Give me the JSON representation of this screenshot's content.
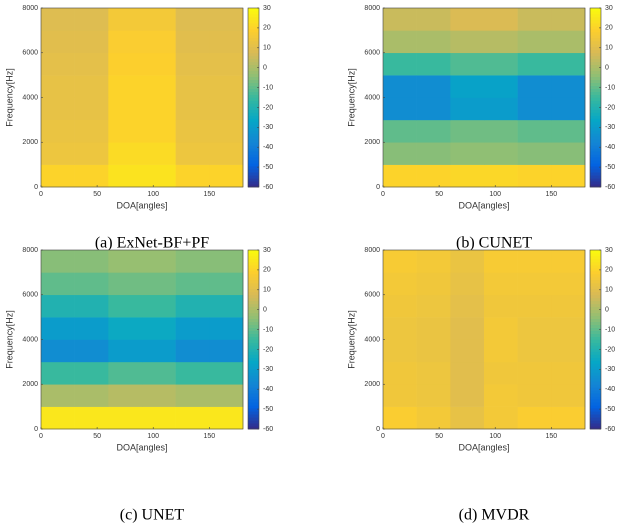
{
  "chart_data": [
    {
      "type": "heatmap",
      "title": "(a) ExNet-BF+PF",
      "xlabel": "DOA[angles]",
      "ylabel": "Frequency[Hz]",
      "x_bins": [
        0,
        30,
        60,
        90,
        120,
        150,
        180
      ],
      "y_bins": [
        0,
        1000,
        2000,
        3000,
        4000,
        5000,
        6000,
        7000,
        8000
      ],
      "values": [
        [
          20,
          20,
          24,
          24,
          20,
          20
        ],
        [
          14,
          14,
          22,
          22,
          14,
          14
        ],
        [
          13,
          13,
          20,
          20,
          13,
          13
        ],
        [
          12,
          12,
          20,
          20,
          12,
          12
        ],
        [
          12,
          12,
          20,
          20,
          12,
          12
        ],
        [
          11,
          11,
          19,
          19,
          11,
          11
        ],
        [
          10,
          10,
          18,
          18,
          10,
          10
        ],
        [
          9,
          9,
          16,
          16,
          9,
          9
        ]
      ],
      "xlim": [
        0,
        180
      ],
      "xticks": [
        0,
        50,
        100,
        150
      ],
      "ylim": [
        0,
        8000
      ],
      "yticks": [
        0,
        2000,
        4000,
        6000,
        8000
      ],
      "clim": [
        -60,
        30
      ],
      "cticks": [
        -60,
        -50,
        -40,
        -30,
        -20,
        -10,
        0,
        10,
        20,
        30
      ],
      "colormap": [
        "#352a87",
        "#0363e1",
        "#1485d4",
        "#06a7c6",
        "#38b99e",
        "#92bf73",
        "#d9ba56",
        "#fcce2e",
        "#f9fb0e"
      ]
    },
    {
      "type": "heatmap",
      "title": "(b) CUNET",
      "xlabel": "DOA[angles]",
      "ylabel": "Frequency[Hz]",
      "x_bins": [
        0,
        30,
        60,
        90,
        120,
        150,
        180
      ],
      "y_bins": [
        0,
        1000,
        2000,
        3000,
        4000,
        5000,
        6000,
        7000,
        8000
      ],
      "values": [
        [
          20,
          20,
          21,
          21,
          20,
          20
        ],
        [
          -5,
          -5,
          -4,
          -4,
          -5,
          -5
        ],
        [
          -10,
          -10,
          -8,
          -8,
          -10,
          -10
        ],
        [
          -35,
          -35,
          -30,
          -30,
          -35,
          -35
        ],
        [
          -35,
          -35,
          -28,
          -28,
          -35,
          -35
        ],
        [
          -15,
          -15,
          -12,
          -12,
          -15,
          -15
        ],
        [
          0,
          0,
          2,
          2,
          0,
          0
        ],
        [
          5,
          5,
          8,
          8,
          5,
          5
        ]
      ],
      "xlim": [
        0,
        180
      ],
      "xticks": [
        0,
        50,
        100,
        150
      ],
      "ylim": [
        0,
        8000
      ],
      "yticks": [
        0,
        2000,
        4000,
        6000,
        8000
      ],
      "clim": [
        -60,
        30
      ],
      "cticks": [
        -60,
        -50,
        -40,
        -30,
        -20,
        -10,
        0,
        10,
        20,
        30
      ],
      "colormap": [
        "#352a87",
        "#0363e1",
        "#1485d4",
        "#06a7c6",
        "#38b99e",
        "#92bf73",
        "#d9ba56",
        "#fcce2e",
        "#f9fb0e"
      ]
    },
    {
      "type": "heatmap",
      "title": "(c) UNET",
      "xlabel": "DOA[angles]",
      "ylabel": "Frequency[Hz]",
      "x_bins": [
        0,
        30,
        60,
        90,
        120,
        150,
        180
      ],
      "y_bins": [
        0,
        1000,
        2000,
        3000,
        4000,
        5000,
        6000,
        7000,
        8000
      ],
      "values": [
        [
          25,
          25,
          25,
          25,
          25,
          25
        ],
        [
          0,
          0,
          2,
          2,
          0,
          0
        ],
        [
          -15,
          -15,
          -12,
          -12,
          -15,
          -15
        ],
        [
          -35,
          -35,
          -30,
          -30,
          -35,
          -35
        ],
        [
          -30,
          -30,
          -25,
          -25,
          -30,
          -30
        ],
        [
          -20,
          -20,
          -15,
          -15,
          -20,
          -20
        ],
        [
          -10,
          -10,
          -8,
          -8,
          -10,
          -10
        ],
        [
          -5,
          -5,
          -3,
          -3,
          -5,
          -5
        ]
      ],
      "xlim": [
        0,
        180
      ],
      "xticks": [
        0,
        50,
        100,
        150
      ],
      "ylim": [
        0,
        8000
      ],
      "yticks": [
        0,
        2000,
        4000,
        6000,
        8000
      ],
      "clim": [
        -60,
        30
      ],
      "cticks": [
        -60,
        -50,
        -40,
        -30,
        -20,
        -10,
        0,
        10,
        20,
        30
      ],
      "colormap": [
        "#352a87",
        "#0363e1",
        "#1485d4",
        "#06a7c6",
        "#38b99e",
        "#92bf73",
        "#d9ba56",
        "#fcce2e",
        "#f9fb0e"
      ]
    },
    {
      "type": "heatmap",
      "title": "(d) MVDR",
      "xlabel": "DOA[angles]",
      "ylabel": "Frequency[Hz]",
      "x_bins": [
        0,
        30,
        60,
        90,
        120,
        150,
        180
      ],
      "y_bins": [
        0,
        1000,
        2000,
        3000,
        4000,
        5000,
        6000,
        7000,
        8000
      ],
      "values": [
        [
          18,
          16,
          12,
          16,
          18,
          18
        ],
        [
          15,
          14,
          10,
          16,
          15,
          15
        ],
        [
          15,
          14,
          10,
          15,
          15,
          15
        ],
        [
          14,
          13,
          10,
          16,
          14,
          14
        ],
        [
          14,
          13,
          10,
          16,
          14,
          14
        ],
        [
          15,
          14,
          11,
          15,
          15,
          15
        ],
        [
          16,
          15,
          12,
          16,
          16,
          16
        ],
        [
          17,
          16,
          13,
          17,
          17,
          17
        ]
      ],
      "xlim": [
        0,
        180
      ],
      "xticks": [
        0,
        50,
        100,
        150
      ],
      "ylim": [
        0,
        8000
      ],
      "yticks": [
        0,
        2000,
        4000,
        6000,
        8000
      ],
      "clim": [
        -60,
        30
      ],
      "cticks": [
        -60,
        -50,
        -40,
        -30,
        -20,
        -10,
        0,
        10,
        20,
        30
      ],
      "colormap": [
        "#352a87",
        "#0363e1",
        "#1485d4",
        "#06a7c6",
        "#38b99e",
        "#92bf73",
        "#d9ba56",
        "#fcce2e",
        "#f9fb0e"
      ]
    }
  ]
}
